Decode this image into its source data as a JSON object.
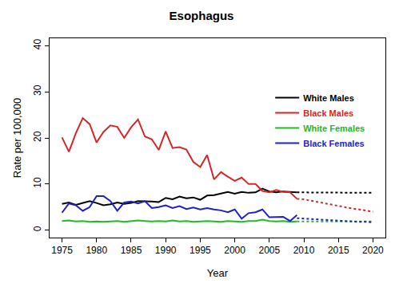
{
  "chart_data": {
    "type": "line",
    "title": "Esophagus",
    "x_label": "Year",
    "y_label": "Rate per 100,000",
    "x": [
      1975,
      1976,
      1977,
      1978,
      1979,
      1980,
      1981,
      1982,
      1983,
      1984,
      1985,
      1986,
      1987,
      1988,
      1989,
      1990,
      1991,
      1992,
      1993,
      1994,
      1995,
      1996,
      1997,
      1998,
      1999,
      2000,
      2001,
      2002,
      2003,
      2004,
      2005,
      2006,
      2007,
      2008,
      2009,
      2010,
      2011,
      2012,
      2013,
      2014,
      2015,
      2016,
      2017,
      2018,
      2019,
      2020
    ],
    "xlim": [
      1973.2,
      2021.8
    ],
    "xticks": [
      1975,
      1980,
      1985,
      1990,
      1995,
      2000,
      2005,
      2010,
      2015,
      2020
    ],
    "ylim": [
      -1.6,
      41.6
    ],
    "yticks": [
      0,
      10,
      20,
      30,
      40
    ],
    "grid": false,
    "legend": "right",
    "series": [
      {
        "name": "White Males",
        "color": "#000000",
        "line_style": "solid",
        "values": [
          5.7,
          6.0,
          5.5,
          5.9,
          6.3,
          5.9,
          5.4,
          5.6,
          6.0,
          5.7,
          5.9,
          6.3,
          6.3,
          6.2,
          6.1,
          7.0,
          6.7,
          7.3,
          6.9,
          7.1,
          6.6,
          7.5,
          7.6,
          7.9,
          8.3,
          7.9,
          8.3,
          8.1,
          8.2,
          9.0,
          8.4,
          8.2,
          8.4,
          8.3,
          8.2,
          null,
          null,
          null,
          null,
          null,
          null,
          null,
          null,
          null,
          null,
          null
        ]
      },
      {
        "name": "Black Males",
        "color": "#d62728",
        "line_style": "solid",
        "values": [
          20.1,
          17.0,
          21.0,
          24.3,
          23.0,
          19.0,
          21.3,
          22.7,
          22.4,
          20.0,
          22.3,
          24.0,
          20.3,
          19.7,
          17.4,
          21.4,
          17.8,
          18.0,
          17.5,
          14.8,
          13.7,
          16.3,
          11.0,
          12.6,
          11.6,
          10.7,
          11.4,
          10.0,
          10.0,
          8.5,
          8.2,
          8.7,
          8.3,
          8.2,
          6.8,
          null,
          null,
          null,
          null,
          null,
          null,
          null,
          null,
          null,
          null,
          null
        ]
      },
      {
        "name": "White Females",
        "color": "#22bb22",
        "line_style": "solid",
        "values": [
          2.0,
          2.1,
          1.9,
          2.0,
          1.8,
          1.9,
          1.8,
          1.9,
          2.0,
          1.8,
          1.9,
          2.1,
          2.0,
          1.9,
          2.0,
          1.9,
          2.1,
          1.9,
          2.0,
          1.8,
          1.9,
          2.0,
          1.9,
          1.8,
          2.0,
          1.9,
          1.8,
          2.0,
          2.0,
          2.3,
          2.0,
          1.9,
          2.0,
          1.8,
          1.9,
          null,
          null,
          null,
          null,
          null,
          null,
          null,
          null,
          null,
          null,
          null
        ]
      },
      {
        "name": "Black Females",
        "color": "#1f1fcc",
        "line_style": "solid",
        "values": [
          3.8,
          5.8,
          5.4,
          4.2,
          5.0,
          7.4,
          7.4,
          6.3,
          4.2,
          6.0,
          6.2,
          5.8,
          6.3,
          4.8,
          5.0,
          5.4,
          4.8,
          5.2,
          4.6,
          4.9,
          4.5,
          4.8,
          4.5,
          4.3,
          3.9,
          4.5,
          2.5,
          3.7,
          3.9,
          4.5,
          2.8,
          2.9,
          2.9,
          2.0,
          3.3,
          null,
          null,
          null,
          null,
          null,
          null,
          null,
          null,
          null,
          null,
          null
        ]
      },
      {
        "name": "White Males",
        "color": "#000000",
        "line_style": "dotted",
        "values": [
          null,
          null,
          null,
          null,
          null,
          null,
          null,
          null,
          null,
          null,
          null,
          null,
          null,
          null,
          null,
          null,
          null,
          null,
          null,
          null,
          null,
          null,
          null,
          null,
          null,
          null,
          null,
          null,
          null,
          null,
          null,
          null,
          null,
          null,
          8.2,
          8.2,
          8.2,
          8.2,
          8.2,
          8.2,
          8.2,
          8.1,
          8.1,
          8.1,
          8.1,
          8.1
        ]
      },
      {
        "name": "Black Males",
        "color": "#d62728",
        "line_style": "dotted",
        "values": [
          null,
          null,
          null,
          null,
          null,
          null,
          null,
          null,
          null,
          null,
          null,
          null,
          null,
          null,
          null,
          null,
          null,
          null,
          null,
          null,
          null,
          null,
          null,
          null,
          null,
          null,
          null,
          null,
          null,
          null,
          null,
          null,
          null,
          null,
          6.8,
          6.7,
          6.4,
          6.1,
          5.8,
          5.5,
          5.2,
          5.0,
          4.7,
          4.5,
          4.2,
          4.0
        ]
      },
      {
        "name": "White Females",
        "color": "#22bb22",
        "line_style": "dotted",
        "values": [
          null,
          null,
          null,
          null,
          null,
          null,
          null,
          null,
          null,
          null,
          null,
          null,
          null,
          null,
          null,
          null,
          null,
          null,
          null,
          null,
          null,
          null,
          null,
          null,
          null,
          null,
          null,
          null,
          null,
          null,
          null,
          null,
          null,
          null,
          1.9,
          1.9,
          1.9,
          1.9,
          1.9,
          1.9,
          1.9,
          1.9,
          1.9,
          1.9,
          1.9,
          1.9
        ]
      },
      {
        "name": "Black Females",
        "color": "#1f1fcc",
        "line_style": "dotted",
        "values": [
          null,
          null,
          null,
          null,
          null,
          null,
          null,
          null,
          null,
          null,
          null,
          null,
          null,
          null,
          null,
          null,
          null,
          null,
          null,
          null,
          null,
          null,
          null,
          null,
          null,
          null,
          null,
          null,
          null,
          null,
          null,
          null,
          null,
          null,
          2.6,
          2.5,
          2.4,
          2.3,
          2.2,
          2.1,
          2.0,
          1.9,
          1.9,
          1.8,
          1.8,
          1.7
        ]
      }
    ]
  }
}
